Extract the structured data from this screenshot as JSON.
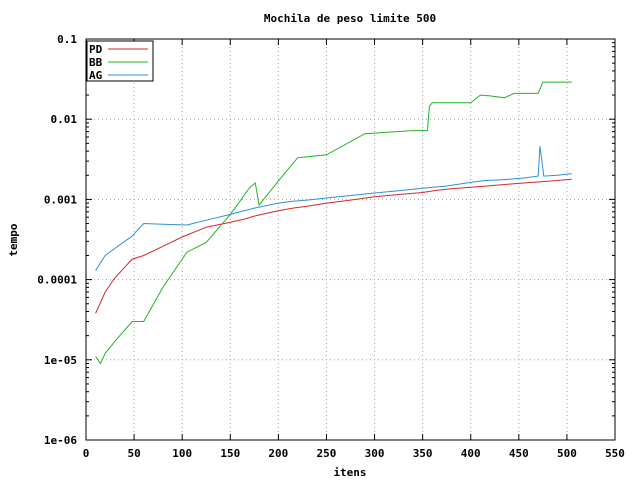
{
  "chart_data": {
    "type": "line",
    "title": "Mochila de peso limite 500",
    "xlabel": "itens",
    "ylabel": "tempo",
    "xlim": [
      0,
      550
    ],
    "ylim": [
      1e-06,
      0.1
    ],
    "yscale": "log",
    "grid": true,
    "legend_position": "top-left",
    "x_ticks": [
      "0",
      "50",
      "100",
      "150",
      "200",
      "250",
      "300",
      "350",
      "400",
      "450",
      "500",
      "550"
    ],
    "y_ticks": [
      "1e-06",
      "1e-05",
      "0.0001",
      "0.001",
      "0.01",
      "0.1"
    ],
    "series": [
      {
        "name": "PD",
        "color": "#d62728",
        "x": [
          10,
          20,
          30,
          48,
          60,
          80,
          100,
          125,
          150,
          165,
          175,
          185,
          200,
          215,
          230,
          250,
          275,
          300,
          325,
          350,
          365,
          380,
          400,
          420,
          440,
          460,
          480,
          505
        ],
        "y": [
          3.8e-05,
          7e-05,
          0.000105,
          0.00018,
          0.0002,
          0.00026,
          0.00034,
          0.00045,
          0.00052,
          0.00057,
          0.00062,
          0.00066,
          0.00072,
          0.00078,
          0.00082,
          0.0009,
          0.00098,
          0.00108,
          0.00115,
          0.00122,
          0.0013,
          0.00136,
          0.00142,
          0.00148,
          0.00155,
          0.00162,
          0.00168,
          0.00178
        ]
      },
      {
        "name": "BB",
        "color": "#22b422",
        "x": [
          10,
          15,
          20,
          30,
          48,
          60,
          80,
          105,
          125,
          150,
          160,
          170,
          176,
          180,
          200,
          220,
          230,
          250,
          290,
          340,
          355,
          357,
          360,
          400,
          410,
          420,
          435,
          445,
          470,
          475,
          505
        ],
        "y": [
          1.1e-05,
          9e-06,
          1.2e-05,
          1.7e-05,
          3e-05,
          3e-05,
          8e-05,
          0.00022,
          0.00029,
          0.00065,
          0.00095,
          0.0014,
          0.0016,
          0.00085,
          0.0017,
          0.0033,
          0.0034,
          0.0036,
          0.0066,
          0.0072,
          0.0072,
          0.0145,
          0.016,
          0.016,
          0.02,
          0.0195,
          0.0185,
          0.021,
          0.021,
          0.029,
          0.029
        ]
      },
      {
        "name": "AG",
        "color": "#2f8fd8",
        "x": [
          10,
          20,
          30,
          48,
          60,
          80,
          105,
          125,
          150,
          175,
          200,
          215,
          230,
          250,
          275,
          300,
          325,
          350,
          375,
          400,
          415,
          430,
          440,
          455,
          470,
          472,
          476,
          490,
          505
        ],
        "y": [
          0.00013,
          0.0002,
          0.000245,
          0.00035,
          0.0005,
          0.00049,
          0.00048,
          0.00055,
          0.00065,
          0.00078,
          0.0009,
          0.00095,
          0.00098,
          0.00104,
          0.00112,
          0.0012,
          0.00128,
          0.00138,
          0.00147,
          0.00163,
          0.00172,
          0.00175,
          0.00178,
          0.00185,
          0.00195,
          0.0046,
          0.00195,
          0.002,
          0.0021
        ]
      }
    ]
  }
}
